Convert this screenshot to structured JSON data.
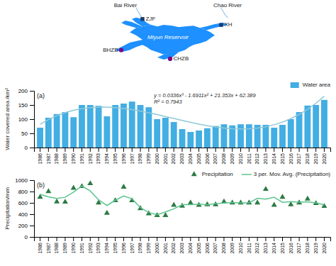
{
  "chart_data": [
    {
      "type": "map",
      "color": "#1e90ff",
      "annotations": [
        "Miyun Reservoir",
        "Bai River",
        "Chao River",
        "ZJF",
        "XH",
        "BHZB",
        "CHZB"
      ]
    },
    {
      "type": "bar",
      "y_label": "Water covered area /km²",
      "categories": [
        "1986",
        "1987",
        "1988",
        "1989",
        "1990",
        "1991",
        "1992",
        "1993",
        "1994",
        "1995",
        "1996",
        "1997",
        "1998",
        "1999",
        "2000",
        "2001",
        "2002",
        "2003",
        "2004",
        "2005",
        "2006",
        "2007",
        "2008",
        "2009",
        "2010",
        "2011",
        "2012",
        "2013",
        "2014",
        "2015",
        "2016",
        "2017",
        "2018",
        "2019",
        "2020"
      ],
      "series": [
        {
          "name": "Water area",
          "type": "bar",
          "color": "#42aee3",
          "values": [
            70,
            105,
            118,
            125,
            107,
            150,
            150,
            147,
            110,
            150,
            155,
            162,
            150,
            142,
            100,
            105,
            90,
            65,
            55,
            60,
            68,
            76,
            82,
            78,
            82,
            82,
            80,
            80,
            70,
            80,
            100,
            125,
            148,
            150,
            168
          ]
        },
        {
          "type": "line",
          "color": "#90c8d8",
          "values": [
            82.03,
            98.6,
            112.18,
            122.98,
            131.2,
            137.05,
            140.72,
            142.42,
            142.35,
            140.71,
            137.7,
            133.53,
            128.4,
            122.51,
            116.06,
            109.25,
            102.29,
            95.38,
            88.72,
            82.51,
            76.95,
            72.26,
            68.62,
            66.24,
            65.32,
            66.07,
            68.68,
            73.37,
            80.32,
            89.75,
            101.85,
            116.83,
            134.89,
            156.23,
            181.05
          ]
        }
      ],
      "ylim": [
        0,
        200
      ],
      "yticks": [
        0,
        50,
        100,
        150,
        200
      ],
      "grid": false,
      "legend": "upper right",
      "annotations": [
        "(a)",
        "y = 0.0336x³ - 1.6911x² + 21.353x + 62.389",
        "R² = 0.7943"
      ]
    },
    {
      "type": "scatter",
      "y_label": "Precipitation/mm",
      "categories": [
        "1986",
        "1987",
        "1988",
        "1989",
        "1990",
        "1991",
        "1992",
        "1993",
        "1994",
        "1995",
        "1996",
        "1997",
        "1998",
        "1999",
        "2000",
        "2001",
        "2002",
        "2003",
        "2004",
        "2005",
        "2006",
        "2007",
        "2008",
        "2009",
        "2010",
        "2011",
        "2012",
        "2013",
        "2014",
        "2015",
        "2016",
        "2017",
        "2018",
        "2019",
        "2020"
      ],
      "series": [
        {
          "name": "Precipitation",
          "type": "scatter",
          "marker": "triangle",
          "color": "#2d7a44",
          "values": [
            700,
            800,
            620,
            615,
            860,
            890,
            940,
            600,
            420,
            640,
            880,
            640,
            500,
            410,
            380,
            380,
            560,
            545,
            600,
            560,
            570,
            570,
            620,
            600,
            600,
            600,
            600,
            840,
            560,
            700,
            570,
            600,
            670,
            590,
            540
          ]
        },
        {
          "name": "3 per. Mov. Avg. (Precipitation)",
          "type": "line",
          "color": "#5dc490",
          "values": [
            750,
            706.67,
            678.33,
            698.33,
            788.33,
            896.67,
            810,
            653.33,
            553.33,
            646.67,
            720,
            673.33,
            516.67,
            430,
            390,
            440,
            495,
            568.33,
            568.33,
            576.67,
            566.67,
            586.67,
            596.67,
            606.67,
            600,
            600,
            680,
            666.67,
            700,
            610,
            623.33,
            613.33,
            620,
            600,
            565
          ]
        }
      ],
      "ylim": [
        0,
        1000
      ],
      "yticks": [
        0,
        200,
        400,
        600,
        800,
        1000
      ],
      "grid": false,
      "legend": "upper right",
      "annotations": [
        "(b)"
      ]
    }
  ]
}
